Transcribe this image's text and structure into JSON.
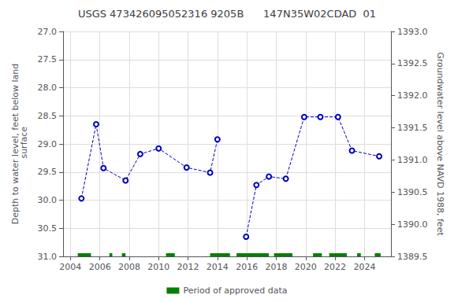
{
  "chart_data": {
    "type": "line",
    "title": "USGS 473426095052316 9205B      147N35W02CDAD  01",
    "y_label": "Depth to water level, feet below land\n surface",
    "y2_label": "Groundwater level above NAVD 1988, feet",
    "xlim": [
      2003.5,
      2025.8
    ],
    "xticks": [
      2004,
      2006,
      2008,
      2010,
      2012,
      2014,
      2016,
      2018,
      2020,
      2022,
      2024
    ],
    "ylim": [
      31.0,
      27.0
    ],
    "yticks": [
      {
        "value": 27.0,
        "label": "27.0"
      },
      27.5,
      {
        "value": 28.0,
        "label": "28.0"
      },
      28.5,
      {
        "value": 29.0,
        "label": "29.0"
      },
      29.5,
      {
        "value": 30.0,
        "label": "30.0"
      },
      30.5,
      {
        "value": 31.0,
        "label": "31.0"
      }
    ],
    "y2lim": [
      1389.5,
      1393.0
    ],
    "y2ticks": [
      1389.5,
      {
        "value": 1390.0,
        "label": "1390.0"
      },
      1390.5,
      {
        "value": 1391.0,
        "label": "1391.0"
      },
      1391.5,
      {
        "value": 1392.0,
        "label": "1392.0"
      },
      1392.5,
      {
        "value": 1393.0,
        "label": "1393.0"
      }
    ],
    "grid": true,
    "legend": "bottom",
    "series": [
      {
        "x": [
          2004.75,
          2005.75,
          2006.25,
          2007.75,
          2008.75,
          2010.0,
          2011.9,
          2013.5,
          2014.0
        ],
        "values": [
          29.97,
          28.65,
          29.43,
          29.65,
          29.18,
          29.08,
          29.42,
          29.51,
          28.92
        ],
        "color": "#0000BB",
        "line_style": "dashed",
        "marker": "circle"
      },
      {
        "x": [
          2015.95,
          2016.65,
          2017.5,
          2018.65,
          2019.9,
          2021.0,
          2022.2,
          2023.15,
          2025.0
        ],
        "values": [
          30.65,
          29.73,
          29.58,
          29.62,
          28.52,
          28.52,
          28.52,
          29.12,
          29.22
        ],
        "color": "#0000BB",
        "line_style": "dashed",
        "marker": "circle"
      }
    ],
    "periods": {
      "name": "Period of approved data",
      "color": "#008000",
      "ranges": [
        [
          2004.5,
          2005.4
        ],
        [
          2006.65,
          2006.85
        ],
        [
          2007.5,
          2007.75
        ],
        [
          2010.5,
          2011.1
        ],
        [
          2013.5,
          2014.85
        ],
        [
          2015.3,
          2017.5
        ],
        [
          2017.85,
          2019.1
        ],
        [
          2020.5,
          2021.1
        ],
        [
          2021.6,
          2022.8
        ],
        [
          2023.5,
          2023.75
        ],
        [
          2024.7,
          2025.1
        ]
      ]
    }
  }
}
